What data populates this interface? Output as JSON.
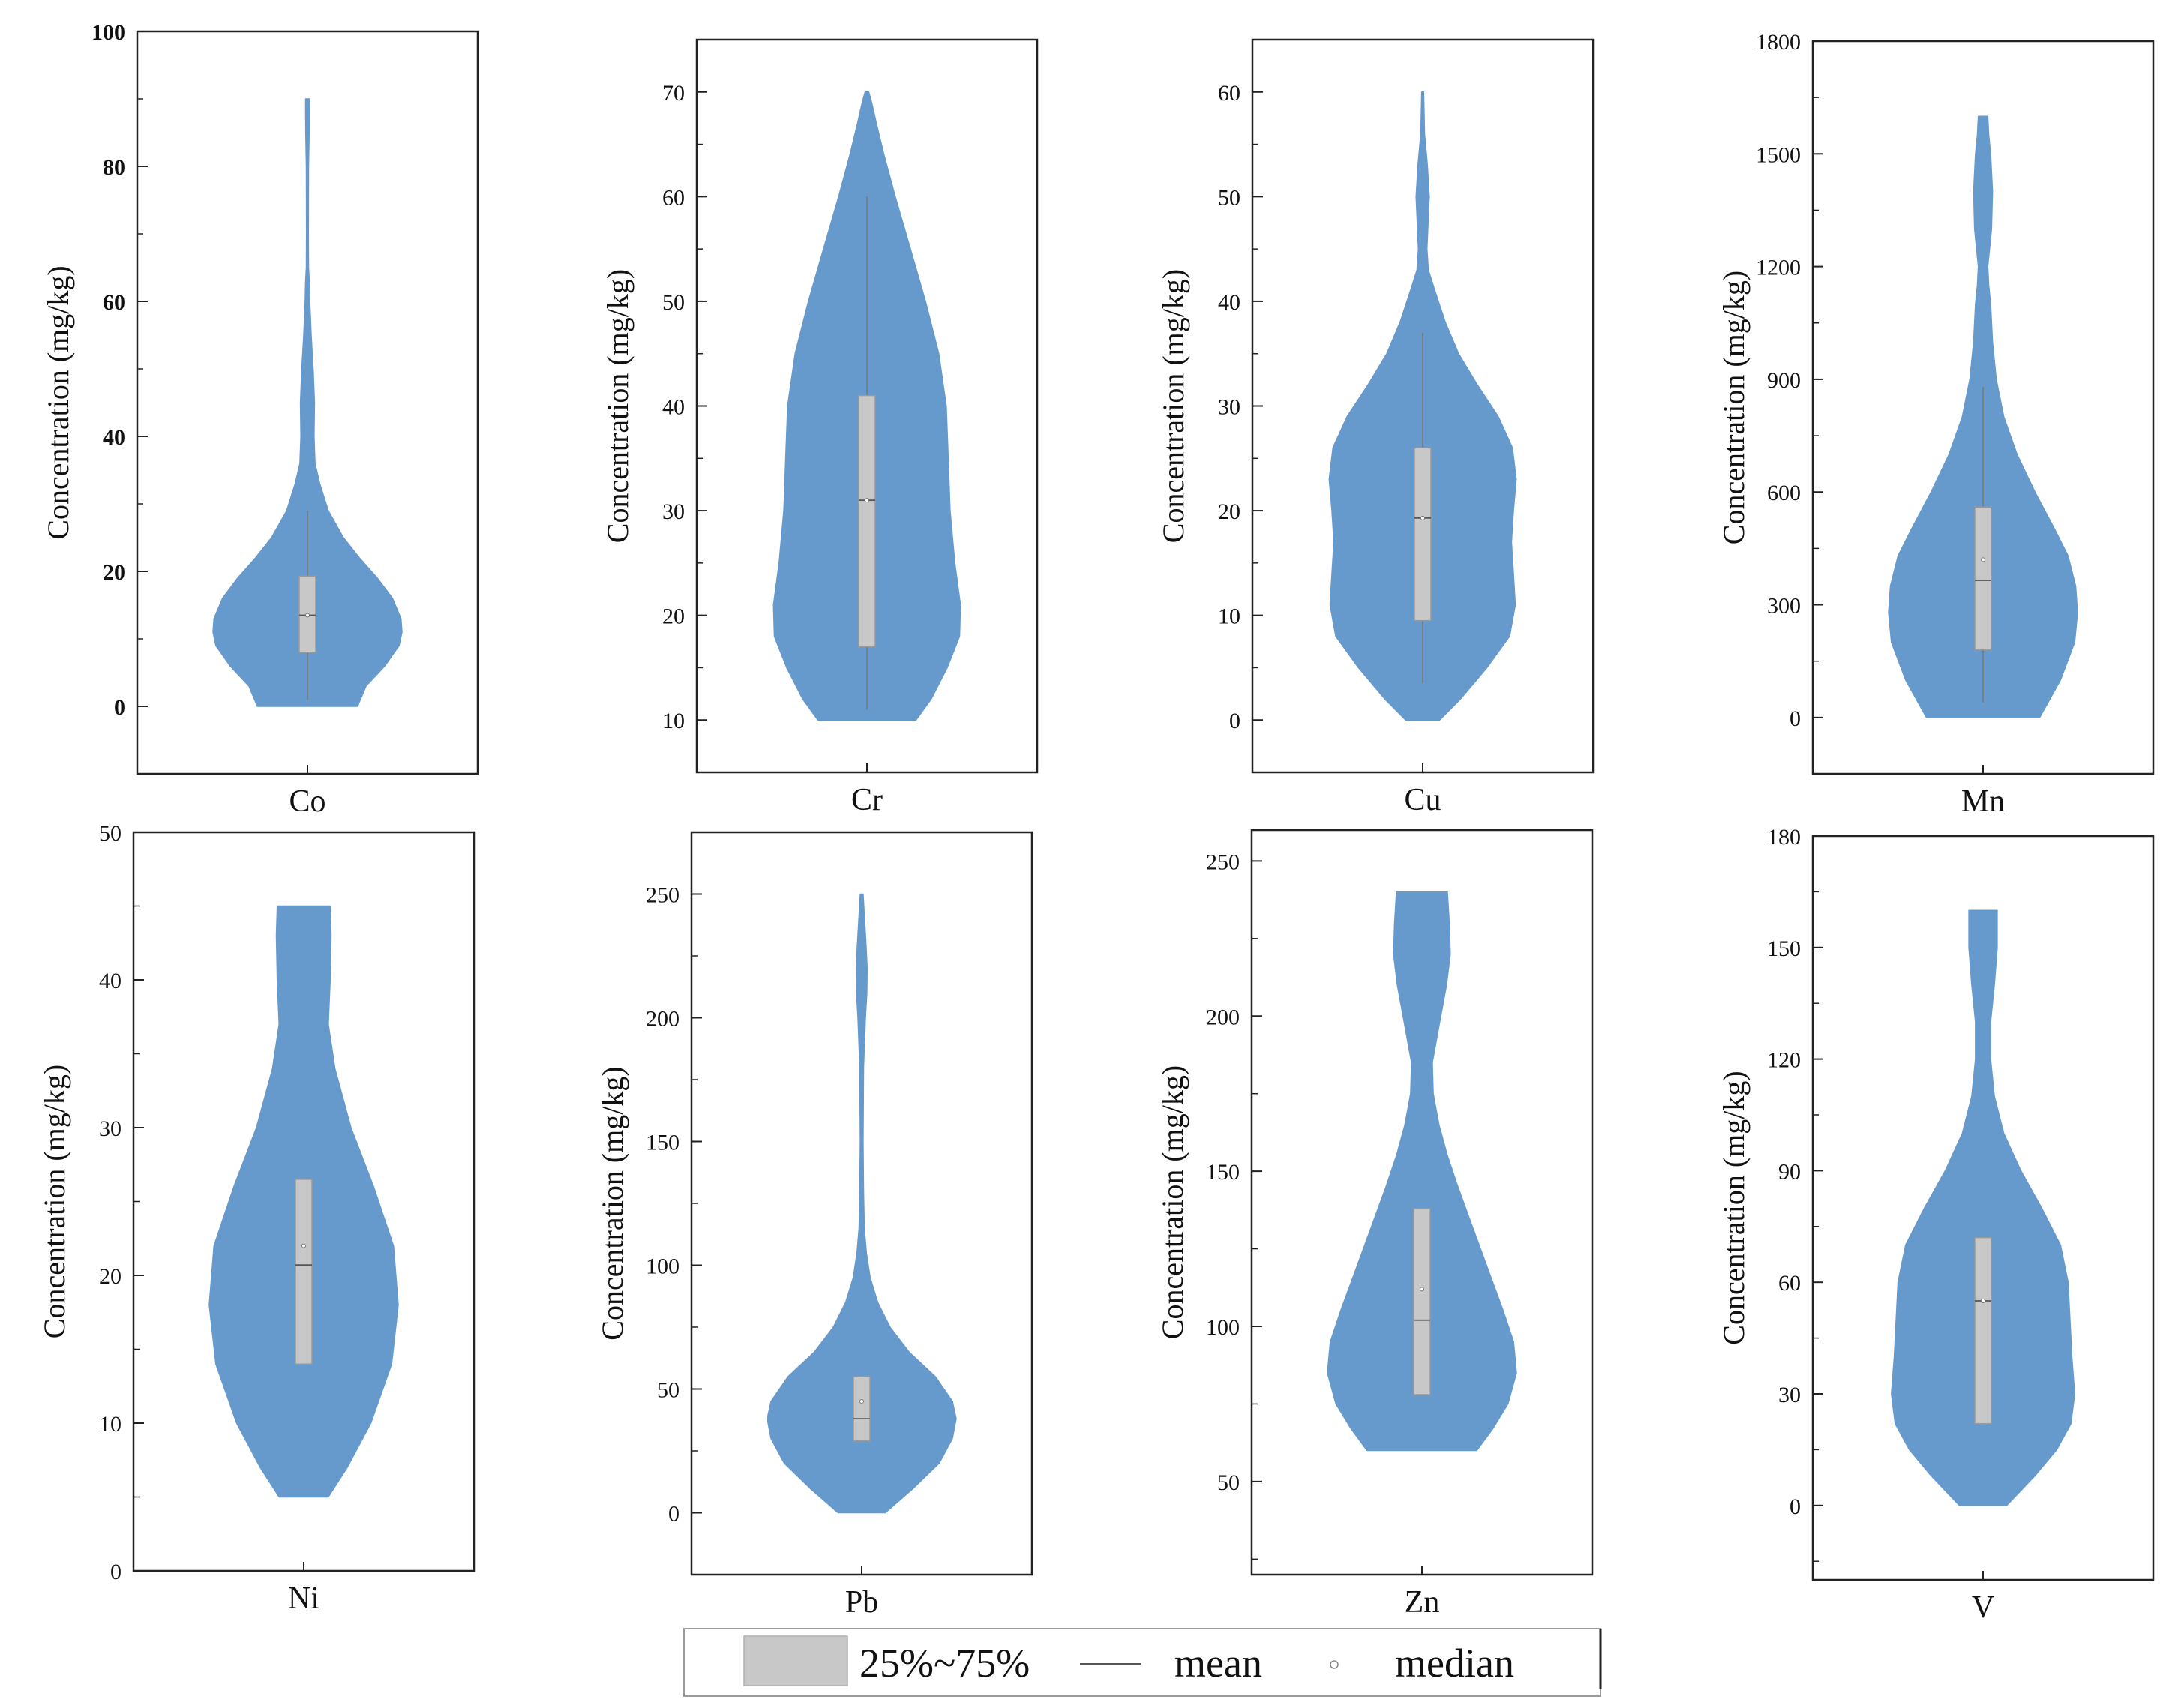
{
  "figure": {
    "y_axis_label": "Concentration (mg/kg)"
  },
  "legend": {
    "box_label": "25%~75%",
    "mean_label": "mean",
    "median_label": "median",
    "colors": {
      "violin": "#6699cc",
      "box": "#c8c8c8",
      "whisker": "#777777",
      "axis": "#222222"
    }
  },
  "chart_data": [
    {
      "type": "violin",
      "element": "Co",
      "xlabel": "Co",
      "ylabel": "Concentration (mg/kg)",
      "ylim": [
        -10,
        100
      ],
      "yticks": [
        0,
        20,
        40,
        60,
        80,
        100
      ],
      "bold_ticks": true,
      "q1": 8,
      "q3": 19.3,
      "median": 13.5,
      "mean": 13.5,
      "whisker_low": 1,
      "whisker_high": 29,
      "density": [
        [
          0,
          0.53
        ],
        [
          3,
          0.62
        ],
        [
          6,
          0.82
        ],
        [
          9,
          0.97
        ],
        [
          11,
          1.0
        ],
        [
          13,
          0.99
        ],
        [
          16,
          0.9
        ],
        [
          19,
          0.74
        ],
        [
          22,
          0.55
        ],
        [
          25,
          0.38
        ],
        [
          29,
          0.22
        ],
        [
          33,
          0.13
        ],
        [
          36,
          0.08
        ],
        [
          40,
          0.07
        ],
        [
          45,
          0.075
        ],
        [
          50,
          0.06
        ],
        [
          55,
          0.04
        ],
        [
          60,
          0.025
        ],
        [
          63,
          0.02
        ],
        [
          65,
          0.012
        ],
        [
          70,
          0.01
        ],
        [
          80,
          0.012
        ],
        [
          85,
          0.018
        ],
        [
          88,
          0.02
        ],
        [
          90,
          0.02
        ]
      ]
    },
    {
      "type": "violin",
      "element": "Cr",
      "xlabel": "Cr",
      "ylabel": "Concentration (mg/kg)",
      "ylim": [
        5,
        75
      ],
      "yticks": [
        10,
        20,
        30,
        40,
        50,
        60,
        70
      ],
      "bold_ticks": false,
      "q1": 17,
      "q3": 41,
      "median": 31,
      "mean": 31,
      "whisker_low": 11,
      "whisker_high": 60,
      "density": [
        [
          10,
          0.52
        ],
        [
          12,
          0.68
        ],
        [
          15,
          0.85
        ],
        [
          18,
          0.98
        ],
        [
          21,
          0.99
        ],
        [
          25,
          0.93
        ],
        [
          30,
          0.88
        ],
        [
          35,
          0.86
        ],
        [
          40,
          0.84
        ],
        [
          45,
          0.76
        ],
        [
          50,
          0.62
        ],
        [
          55,
          0.46
        ],
        [
          60,
          0.3
        ],
        [
          64,
          0.18
        ],
        [
          67,
          0.1
        ],
        [
          69,
          0.05
        ],
        [
          70,
          0.02
        ]
      ]
    },
    {
      "type": "violin",
      "element": "Cu",
      "xlabel": "Cu",
      "ylabel": "Concentration (mg/kg)",
      "ylim": [
        -5,
        65
      ],
      "yticks": [
        0,
        10,
        20,
        30,
        40,
        50,
        60
      ],
      "bold_ticks": false,
      "q1": 9.5,
      "q3": 26,
      "median": 19.3,
      "mean": 19.3,
      "whisker_low": 3.5,
      "whisker_high": 37,
      "density": [
        [
          0,
          0.18
        ],
        [
          2,
          0.4
        ],
        [
          5,
          0.68
        ],
        [
          8,
          0.92
        ],
        [
          11,
          0.98
        ],
        [
          14,
          0.96
        ],
        [
          17,
          0.94
        ],
        [
          20,
          0.96
        ],
        [
          23,
          0.99
        ],
        [
          26,
          0.95
        ],
        [
          29,
          0.8
        ],
        [
          32,
          0.58
        ],
        [
          35,
          0.38
        ],
        [
          38,
          0.24
        ],
        [
          41,
          0.13
        ],
        [
          43,
          0.06
        ],
        [
          45,
          0.045
        ],
        [
          50,
          0.07
        ],
        [
          53,
          0.05
        ],
        [
          56,
          0.02
        ],
        [
          60,
          0.01
        ]
      ]
    },
    {
      "type": "violin",
      "element": "Mn",
      "xlabel": "Mn",
      "ylabel": "Concentration (mg/kg)",
      "ylim": [
        -150,
        1800
      ],
      "yticks": [
        0,
        300,
        600,
        900,
        1200,
        1500,
        1800
      ],
      "bold_ticks": false,
      "q1": 180,
      "q3": 560,
      "median": 420,
      "mean": 365,
      "whisker_low": 40,
      "whisker_high": 880,
      "density": [
        [
          0,
          0.6
        ],
        [
          100,
          0.82
        ],
        [
          200,
          0.97
        ],
        [
          280,
          1.0
        ],
        [
          350,
          0.98
        ],
        [
          430,
          0.9
        ],
        [
          500,
          0.76
        ],
        [
          600,
          0.55
        ],
        [
          700,
          0.36
        ],
        [
          800,
          0.22
        ],
        [
          900,
          0.14
        ],
        [
          1000,
          0.1
        ],
        [
          1100,
          0.08
        ],
        [
          1150,
          0.06
        ],
        [
          1200,
          0.05
        ],
        [
          1300,
          0.09
        ],
        [
          1400,
          0.1
        ],
        [
          1500,
          0.08
        ],
        [
          1550,
          0.06
        ],
        [
          1600,
          0.05
        ]
      ]
    },
    {
      "type": "violin",
      "element": "Ni",
      "xlabel": "Ni",
      "ylabel": "Concentration (mg/kg)",
      "ylim": [
        0,
        50
      ],
      "yticks": [
        0,
        10,
        20,
        30,
        40,
        50
      ],
      "bold_ticks": false,
      "q1": 14,
      "q3": 26.5,
      "median": 22,
      "mean": 20.7,
      "whisker_low": 14,
      "whisker_high": 26.5,
      "density": [
        [
          5,
          0.26
        ],
        [
          7,
          0.46
        ],
        [
          10,
          0.71
        ],
        [
          14,
          0.93
        ],
        [
          18,
          1.0
        ],
        [
          22,
          0.95
        ],
        [
          26,
          0.74
        ],
        [
          30,
          0.5
        ],
        [
          34,
          0.33
        ],
        [
          37,
          0.26
        ],
        [
          40,
          0.28
        ],
        [
          43,
          0.29
        ],
        [
          45,
          0.28
        ]
      ]
    },
    {
      "type": "violin",
      "element": "Pb",
      "xlabel": "Pb",
      "ylabel": "Concentration (mg/kg)",
      "ylim": [
        -25,
        275
      ],
      "yticks": [
        0,
        50,
        100,
        150,
        200,
        250
      ],
      "bold_ticks": false,
      "q1": 29,
      "q3": 55,
      "median": 45,
      "mean": 38,
      "whisker_low": 29,
      "whisker_high": 55,
      "density": [
        [
          0,
          0.25
        ],
        [
          10,
          0.55
        ],
        [
          20,
          0.82
        ],
        [
          30,
          0.96
        ],
        [
          38,
          1.0
        ],
        [
          45,
          0.96
        ],
        [
          55,
          0.78
        ],
        [
          65,
          0.5
        ],
        [
          75,
          0.3
        ],
        [
          85,
          0.17
        ],
        [
          95,
          0.09
        ],
        [
          105,
          0.05
        ],
        [
          115,
          0.028
        ],
        [
          130,
          0.02
        ],
        [
          150,
          0.015
        ],
        [
          180,
          0.02
        ],
        [
          200,
          0.04
        ],
        [
          210,
          0.055
        ],
        [
          220,
          0.058
        ],
        [
          230,
          0.045
        ],
        [
          240,
          0.03
        ],
        [
          250,
          0.015
        ]
      ]
    },
    {
      "type": "violin",
      "element": "Zn",
      "xlabel": "Zn",
      "ylabel": "Concentration (mg/kg)",
      "ylim": [
        20,
        260
      ],
      "yticks": [
        50,
        100,
        150,
        200,
        250
      ],
      "bold_ticks": false,
      "q1": 78,
      "q3": 138,
      "median": 112,
      "mean": 102,
      "whisker_low": 78,
      "whisker_high": 138,
      "density": [
        [
          60,
          0.58
        ],
        [
          67,
          0.75
        ],
        [
          75,
          0.91
        ],
        [
          85,
          1.0
        ],
        [
          95,
          0.97
        ],
        [
          105,
          0.86
        ],
        [
          115,
          0.74
        ],
        [
          125,
          0.62
        ],
        [
          135,
          0.5
        ],
        [
          145,
          0.38
        ],
        [
          155,
          0.27
        ],
        [
          165,
          0.18
        ],
        [
          175,
          0.12
        ],
        [
          185,
          0.11
        ],
        [
          195,
          0.17
        ],
        [
          210,
          0.26
        ],
        [
          220,
          0.3
        ],
        [
          230,
          0.29
        ],
        [
          240,
          0.27
        ]
      ]
    },
    {
      "type": "violin",
      "element": "V",
      "xlabel": "V",
      "ylabel": "Concentration (mg/kg)",
      "ylim": [
        -20,
        180
      ],
      "yticks": [
        0,
        30,
        60,
        90,
        120,
        150,
        180
      ],
      "bold_ticks": false,
      "q1": 22,
      "q3": 72,
      "median": 55,
      "mean": 55,
      "whisker_low": 22,
      "whisker_high": 72,
      "density": [
        [
          0,
          0.25
        ],
        [
          8,
          0.55
        ],
        [
          15,
          0.78
        ],
        [
          22,
          0.93
        ],
        [
          30,
          0.97
        ],
        [
          40,
          0.94
        ],
        [
          50,
          0.92
        ],
        [
          60,
          0.9
        ],
        [
          70,
          0.82
        ],
        [
          80,
          0.62
        ],
        [
          90,
          0.4
        ],
        [
          100,
          0.22
        ],
        [
          110,
          0.12
        ],
        [
          120,
          0.08
        ],
        [
          130,
          0.08
        ],
        [
          140,
          0.12
        ],
        [
          150,
          0.15
        ],
        [
          160,
          0.15
        ]
      ]
    }
  ]
}
